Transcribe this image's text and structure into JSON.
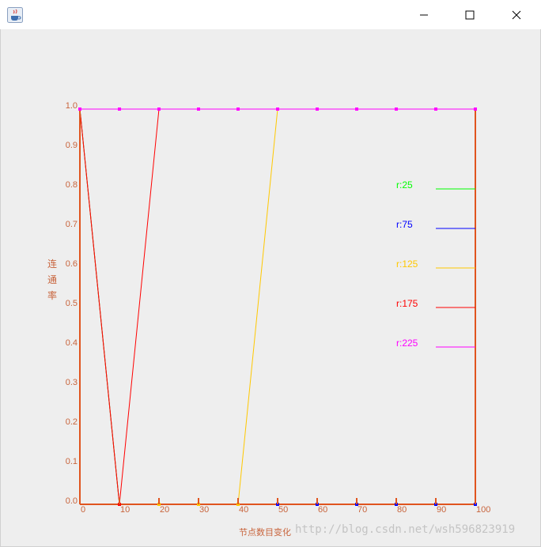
{
  "window": {
    "title": "",
    "icon": "java-cup-icon",
    "buttons": [
      "minimize-icon",
      "maximize-icon",
      "close-icon"
    ]
  },
  "watermark": "http://blog.csdn.net/wsh596823919",
  "colors": {
    "axis": "#e0541e",
    "text": "#c8643c",
    "r25": "#00ff00",
    "r75": "#0000ff",
    "r125": "#ffc800",
    "r175": "#ff0000",
    "r225": "#ff00ff"
  },
  "chart_data": {
    "type": "line",
    "title": "",
    "xlabel": "节点数目变化",
    "ylabel": "连通率",
    "xlim": [
      0,
      100
    ],
    "ylim": [
      0,
      1
    ],
    "x": [
      0,
      10,
      20,
      30,
      40,
      50,
      60,
      70,
      80,
      90,
      100
    ],
    "x_ticks": [
      "0",
      "10",
      "20",
      "30",
      "40",
      "50",
      "60",
      "70",
      "80",
      "90",
      "100"
    ],
    "y_ticks": [
      "0.0",
      "0.1",
      "0.2",
      "0.3",
      "0.4",
      "0.5",
      "0.6",
      "0.7",
      "0.8",
      "0.9",
      "1.0"
    ],
    "grid": false,
    "legend_position": "right",
    "series": [
      {
        "name": "r:25",
        "color": "#00ff00",
        "values": [
          1,
          0,
          0,
          0,
          0,
          0,
          0,
          0,
          0,
          0,
          0
        ]
      },
      {
        "name": "r:75",
        "color": "#0000ff",
        "values": [
          1,
          0,
          0,
          0,
          0,
          0,
          0,
          0,
          0,
          0,
          0
        ]
      },
      {
        "name": "r:125",
        "color": "#ffc800",
        "values": [
          1,
          0,
          0,
          0,
          0,
          1,
          1,
          1,
          1,
          1,
          1
        ]
      },
      {
        "name": "r:175",
        "color": "#ff0000",
        "values": [
          1,
          0,
          1,
          1,
          1,
          1,
          1,
          1,
          1,
          1,
          1
        ]
      },
      {
        "name": "r:225",
        "color": "#ff00ff",
        "values": [
          1,
          1,
          1,
          1,
          1,
          1,
          1,
          1,
          1,
          1,
          1
        ]
      }
    ]
  }
}
